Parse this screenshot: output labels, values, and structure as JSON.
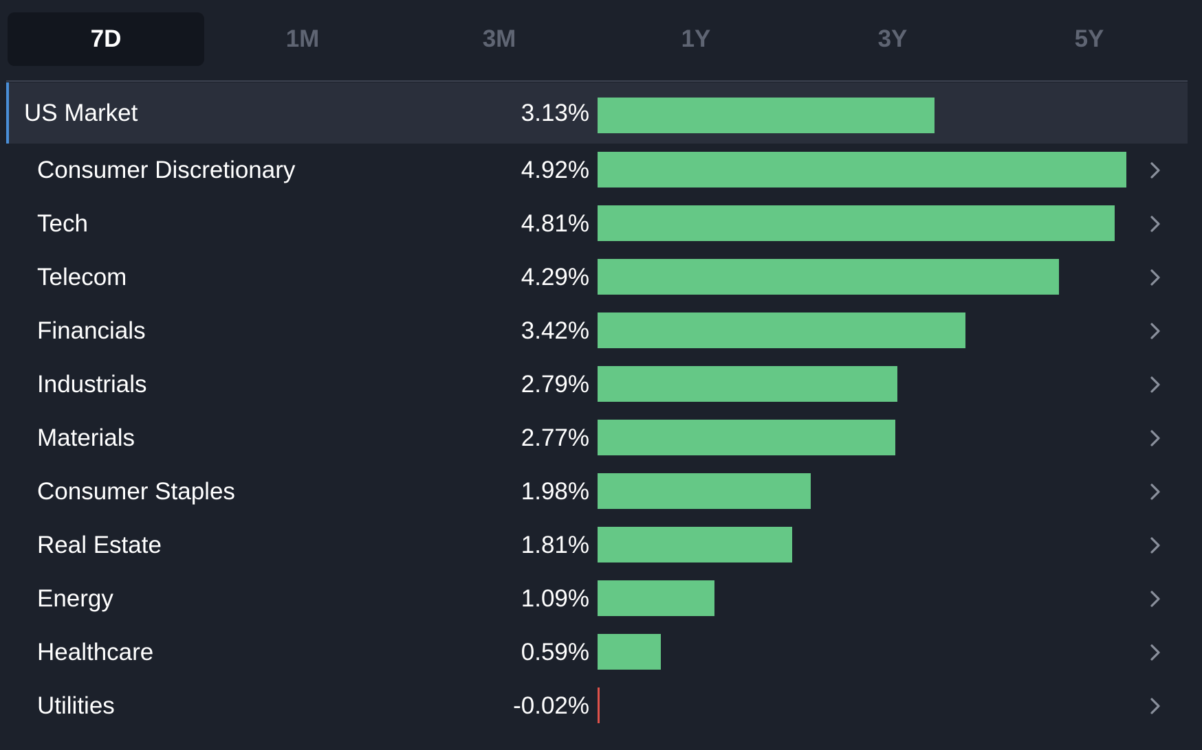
{
  "tabs": [
    {
      "label": "7D",
      "active": true
    },
    {
      "label": "1M",
      "active": false
    },
    {
      "label": "3M",
      "active": false
    },
    {
      "label": "1Y",
      "active": false
    },
    {
      "label": "3Y",
      "active": false
    },
    {
      "label": "5Y",
      "active": false
    }
  ],
  "colors": {
    "positive_bar": "#65c886",
    "negative_bar": "#e0524a",
    "selected_accent": "#4a8fd8",
    "background": "#1c212b"
  },
  "chart_data": {
    "type": "bar",
    "orientation": "horizontal",
    "xlim": [
      0,
      5.0
    ],
    "categories": [
      "US Market",
      "Consumer Discretionary",
      "Tech",
      "Telecom",
      "Financials",
      "Industrials",
      "Materials",
      "Consumer Staples",
      "Real Estate",
      "Energy",
      "Healthcare",
      "Utilities"
    ],
    "values": [
      3.13,
      4.92,
      4.81,
      4.29,
      3.42,
      2.79,
      2.77,
      1.98,
      1.81,
      1.09,
      0.59,
      -0.02
    ],
    "value_labels": [
      "3.13%",
      "4.92%",
      "4.81%",
      "4.29%",
      "3.42%",
      "2.79%",
      "2.77%",
      "1.98%",
      "1.81%",
      "1.09%",
      "0.59%",
      "-0.02%"
    ]
  },
  "rows": [
    {
      "label": "US Market",
      "value_label": "3.13%",
      "value": 3.13,
      "selected": true,
      "icon": ""
    },
    {
      "label": "Consumer Discretionary",
      "value_label": "4.92%",
      "value": 4.92,
      "selected": false,
      "icon": "chevron-right-icon"
    },
    {
      "label": "Tech",
      "value_label": "4.81%",
      "value": 4.81,
      "selected": false,
      "icon": "chevron-right-icon"
    },
    {
      "label": "Telecom",
      "value_label": "4.29%",
      "value": 4.29,
      "selected": false,
      "icon": "chevron-right-icon"
    },
    {
      "label": "Financials",
      "value_label": "3.42%",
      "value": 3.42,
      "selected": false,
      "icon": "chevron-right-icon"
    },
    {
      "label": "Industrials",
      "value_label": "2.79%",
      "value": 2.79,
      "selected": false,
      "icon": "chevron-right-icon"
    },
    {
      "label": "Materials",
      "value_label": "2.77%",
      "value": 2.77,
      "selected": false,
      "icon": "chevron-right-icon"
    },
    {
      "label": "Consumer Staples",
      "value_label": "1.98%",
      "value": 1.98,
      "selected": false,
      "icon": "chevron-right-icon"
    },
    {
      "label": "Real Estate",
      "value_label": "1.81%",
      "value": 1.81,
      "selected": false,
      "icon": "chevron-right-icon"
    },
    {
      "label": "Energy",
      "value_label": "1.09%",
      "value": 1.09,
      "selected": false,
      "icon": "chevron-right-icon"
    },
    {
      "label": "Healthcare",
      "value_label": "0.59%",
      "value": 0.59,
      "selected": false,
      "icon": "chevron-right-icon"
    },
    {
      "label": "Utilities",
      "value_label": "-0.02%",
      "value": -0.02,
      "selected": false,
      "icon": "chevron-right-icon"
    }
  ]
}
